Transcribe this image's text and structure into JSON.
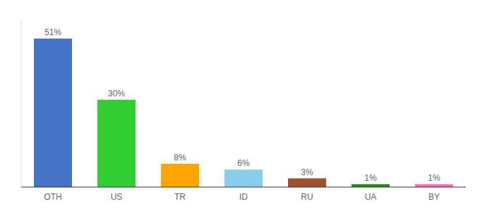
{
  "chart_data": {
    "type": "bar",
    "categories": [
      "OTH",
      "US",
      "TR",
      "ID",
      "RU",
      "UA",
      "BY"
    ],
    "values": [
      51,
      30,
      8,
      6,
      3,
      1,
      1
    ],
    "value_labels": [
      "51%",
      "30%",
      "8%",
      "6%",
      "3%",
      "1%",
      "1%"
    ],
    "colors": [
      "#4472C4",
      "#33CC33",
      "#FFA500",
      "#87CEEB",
      "#A0522D",
      "#228B22",
      "#FF69B4"
    ],
    "ylim": [
      0,
      57
    ],
    "data_labels": true,
    "tick_labels": "x",
    "grid": false
  }
}
